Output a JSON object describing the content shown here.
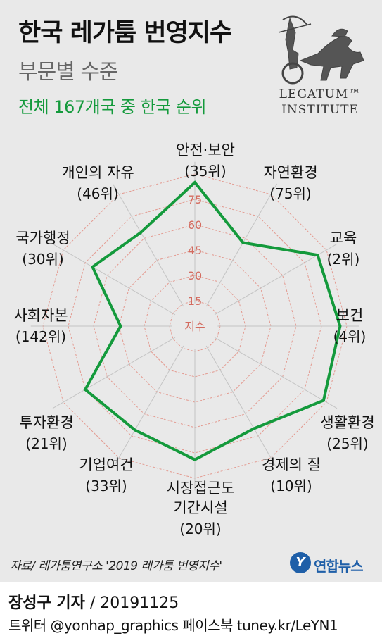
{
  "header": {
    "title": "한국 레가툼 번영지수",
    "subtitle": "부문별 수준",
    "note": "전체 167개국 중 한국 순위"
  },
  "logo": {
    "line1": "LEGATUM™",
    "line2": "INSTITUTE"
  },
  "chart_data": {
    "type": "radar",
    "scale_label": "지수",
    "ticks": [
      15,
      30,
      45,
      60,
      75
    ],
    "max": 90,
    "categories": [
      {
        "label": "안전·보안",
        "rank": "(35위)",
        "value": 85
      },
      {
        "label": "자연환경",
        "rank": "(75위)",
        "value": 57
      },
      {
        "label": "교육",
        "rank": "(2위)",
        "value": 84
      },
      {
        "label": "보건",
        "rank": "(4위)",
        "value": 86
      },
      {
        "label": "생활환경",
        "rank": "(25위)",
        "value": 88
      },
      {
        "label": "경제의 질",
        "rank": "(10위)",
        "value": 70
      },
      {
        "label": "시장접근도\n기간시설",
        "rank": "(20위)",
        "value": 79
      },
      {
        "label": "기업여건",
        "rank": "(33위)",
        "value": 71
      },
      {
        "label": "투자환경",
        "rank": "(21위)",
        "value": 75
      },
      {
        "label": "사회자본",
        "rank": "(142위)",
        "value": 44
      },
      {
        "label": "국가행정",
        "rank": "(30위)",
        "value": 70
      },
      {
        "label": "개인의 자유",
        "rank": "(46위)",
        "value": 64
      }
    ],
    "colors": {
      "line": "#149a3c",
      "grid": "#e39a90",
      "spoke": "#c4c4c4",
      "tick": "#d36b5f"
    }
  },
  "footer": {
    "source": "자료/ 레가툼연구소 '2019 레가툼 번영지수'",
    "brand": "연합뉴스",
    "reporter_name": "장성구 기자",
    "reporter_date": " / 20191125",
    "social": "트위터 @yonhap_graphics  페이스북 tuney.kr/LeYN1"
  }
}
